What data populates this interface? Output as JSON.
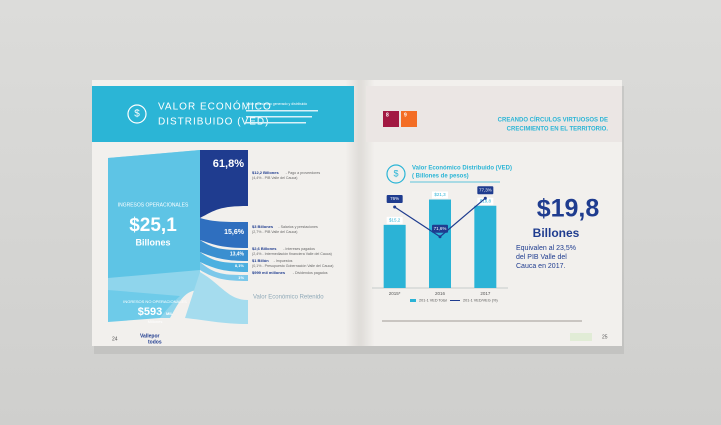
{
  "left_page": {
    "header": {
      "title_line1": "VALOR ECONÓMICO",
      "title_line2": "DISTRIBUIDO (VED)",
      "note": "Valor económico generado y distribuido"
    },
    "sankey": {
      "source_operational": {
        "label": "INGRESOS OPERACIONALES",
        "amount": "$25,1",
        "unit": "Billones"
      },
      "source_non_operational": {
        "label": "INGRESOS NO OPERACIONALES",
        "amount": "$593",
        "unit_small": "MIL",
        "unit": "Millones"
      },
      "flows": [
        {
          "pct": "61,8%",
          "amount": "$12,2 Billones",
          "desc": "- Pago a proveedores",
          "detail": "(4,4% - PIB Valle del Cauca)"
        },
        {
          "pct": "15,6%",
          "amount": "$3 Billones",
          "desc": "- Salarios y prestaciones",
          "detail": "(2,7% - PIB Valle del Cauca)"
        },
        {
          "pct": "13,4%",
          "amount": "$2,6 Billones",
          "desc": "- Intereses pagados",
          "detail": "(2,4% - Intermediación financiera Valle del Cauca)"
        },
        {
          "pct": "8,1%",
          "amount": "$1 Billón",
          "desc": "- Impuestos",
          "detail": "(0,1% - Presupuesto Gobernación Valle del Cauca)"
        },
        {
          "pct": "1%",
          "amount": "$999 mil millones",
          "desc": "- Dividendos pagados",
          "detail": ""
        }
      ],
      "retained": "Valor Económico Retenido"
    },
    "footer": {
      "page": "24",
      "logo_line1": "Vallepor",
      "logo_line2": "todos"
    }
  },
  "right_page": {
    "header": {
      "ods1": "8",
      "ods2": "9",
      "title_line1": "CREANDO CÍRCULOS VIRTUOSOS DE",
      "title_line2": "CRECIMIENTO EN EL TERRITORIO."
    },
    "highlight": {
      "amount": "$19,8",
      "unit": "Billones",
      "text_line1": "Equivalen al 23,5%",
      "text_line2": "del PIB Valle del",
      "text_line3": "Cauca en 2017."
    },
    "footer": {
      "page": "25"
    }
  },
  "chart_data": {
    "type": "bar",
    "title": "Valor Económico Distribuido (VED)",
    "subtitle": "( Billones de pesos)",
    "categories": [
      "2015*",
      "2016",
      "2017"
    ],
    "series": [
      {
        "name": "201-1 VED Total",
        "color": "#2bb3d6",
        "values": [
          15.2,
          21.3,
          19.8
        ],
        "value_labels": [
          "$15,2",
          "$21,3",
          "$19,8"
        ]
      },
      {
        "name": "201-1 VED/VEG (%)",
        "color": "#1f3c8f",
        "type": "line",
        "axis": "y2",
        "values": [
          76,
          71.6,
          77.3
        ],
        "value_labels": [
          "76%",
          "71,6%",
          "77,3%"
        ]
      }
    ],
    "ylim": [
      0,
      26
    ],
    "y2lim": [
      64,
      80
    ]
  }
}
